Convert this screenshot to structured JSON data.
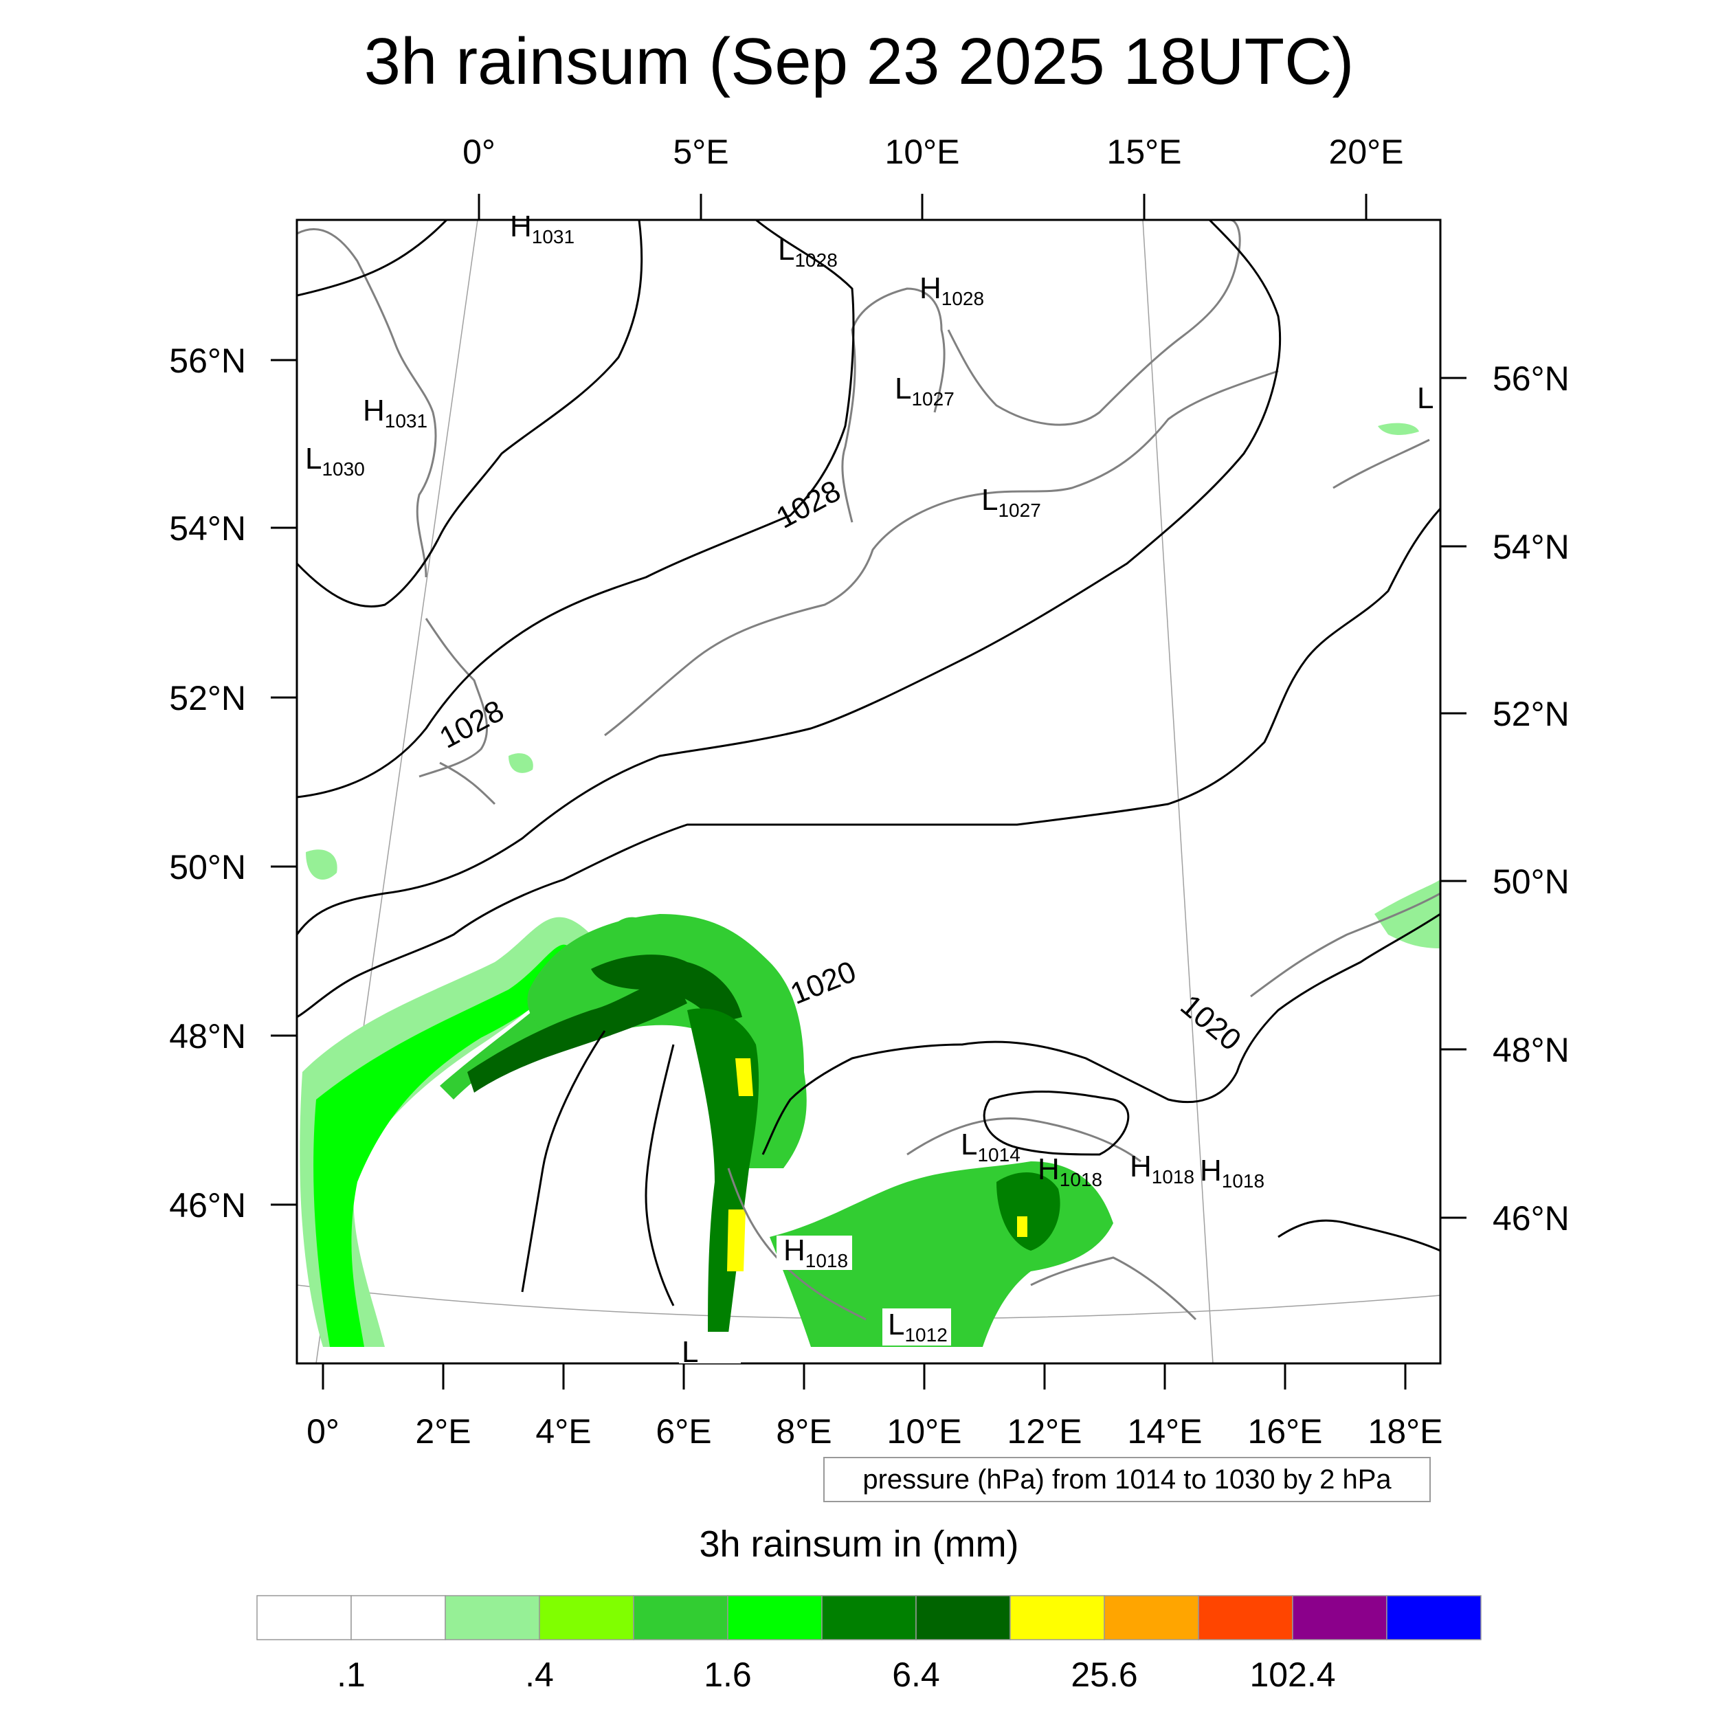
{
  "title": "3h rainsum (Sep 23 2025 18UTC)",
  "top_lon_labels": [
    "0°",
    "5°E",
    "10°E",
    "15°E",
    "20°E"
  ],
  "bottom_lon_labels": [
    "0°",
    "2°E",
    "4°E",
    "6°E",
    "8°E",
    "10°E",
    "12°E",
    "14°E",
    "16°E",
    "18°E"
  ],
  "left_lat_labels": [
    "56°N",
    "54°N",
    "52°N",
    "50°N",
    "48°N",
    "46°N"
  ],
  "right_lat_labels": [
    "56°N",
    "54°N",
    "52°N",
    "50°N",
    "48°N",
    "46°N"
  ],
  "isobar_labels": [
    "1028",
    "1028",
    "1020",
    "1020"
  ],
  "pressure_centers": [
    {
      "letter": "H",
      "value": "1031"
    },
    {
      "letter": "L",
      "value": "1028"
    },
    {
      "letter": "H",
      "value": "1028"
    },
    {
      "letter": "H",
      "value": "1031"
    },
    {
      "letter": "L",
      "value": "1030"
    },
    {
      "letter": "L",
      "value": "1027"
    },
    {
      "letter": "L",
      "value": "1027"
    },
    {
      "letter": "L",
      "value": ""
    },
    {
      "letter": "L",
      "value": "1014"
    },
    {
      "letter": "H",
      "value": "1018"
    },
    {
      "letter": "H",
      "value": "1018"
    },
    {
      "letter": "H",
      "value": "1018"
    },
    {
      "letter": "H",
      "value": "1018"
    },
    {
      "letter": "L",
      "value": "1012"
    },
    {
      "letter": "L",
      "value": ""
    }
  ],
  "contour_info": "pressure (hPa) from 1014 to 1030 by 2 hPa",
  "colorbar": {
    "title": "3h rainsum in (mm)",
    "colors": [
      "#ffffff",
      "#ffffff",
      "#96f096",
      "#80ff00",
      "#32cd32",
      "#00ff00",
      "#008000",
      "#006400",
      "#ffff00",
      "#ffa500",
      "#ff4500",
      "#8b008b",
      "#0000ff"
    ],
    "labels": [
      ".1",
      ".4",
      "1.6",
      "6.4",
      "25.6",
      "102.4"
    ]
  },
  "colors": {
    "coastline": "#808080",
    "isobar": "#000000",
    "graticule": "#a0a0a0"
  }
}
